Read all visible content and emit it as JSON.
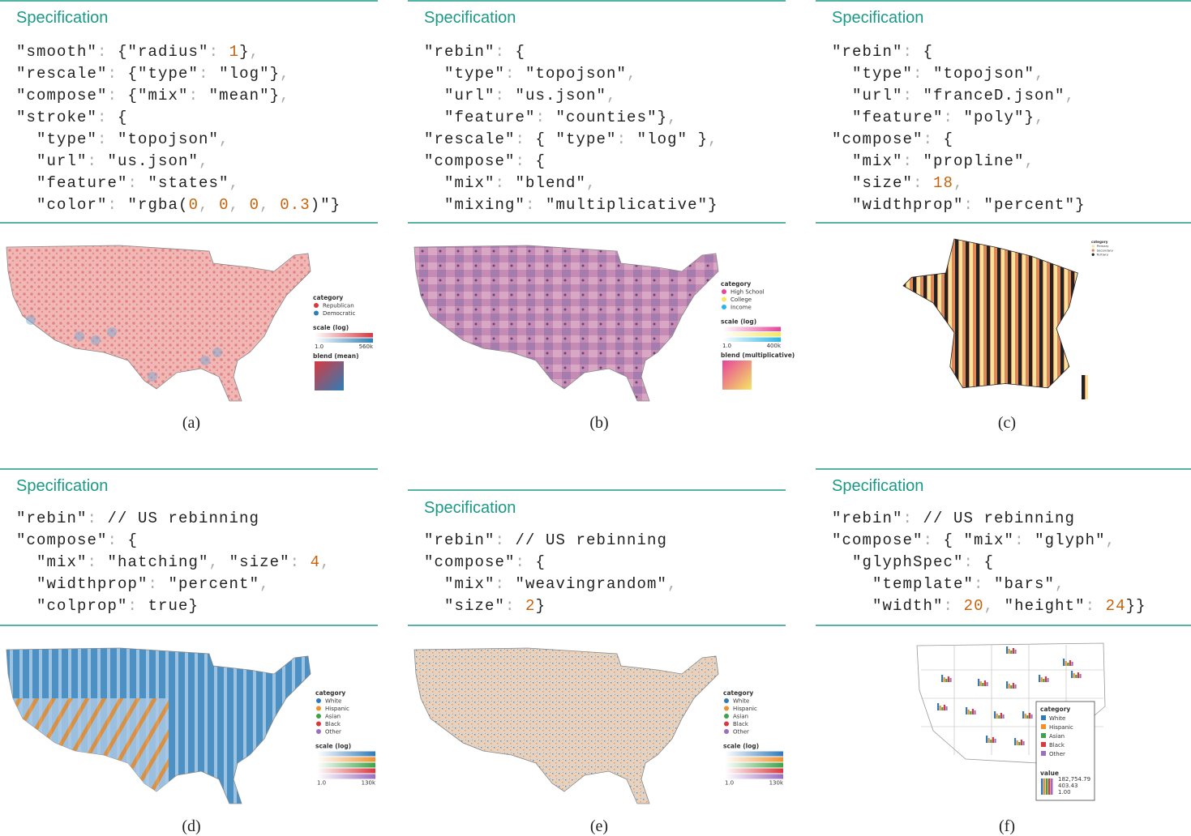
{
  "panels": [
    {
      "heading": "Specification",
      "code": [
        "\"smooth\": {\"radius\": 1},",
        "\"rescale\": {\"type\": \"log\"},",
        "\"compose\": {\"mix\": \"mean\"},",
        "\"stroke\": {",
        "  \"type\": \"topojson\",",
        "  \"url\": \"us.json\",",
        "  \"feature\": \"states\",",
        "  \"color\": \"rgba(0, 0, 0, 0.3)\"}"
      ],
      "legend": {
        "title": "category",
        "items": [
          {
            "label": "Republican",
            "color": "#d8383e"
          },
          {
            "label": "Democratic",
            "color": "#2c7fb8"
          }
        ],
        "scale_title": "scale (log)",
        "scale_min": "1.0",
        "scale_max": "560k",
        "blend_title": "blend (mean)"
      },
      "caption": "(a)"
    },
    {
      "heading": "Specification",
      "code": [
        "\"rebin\": {",
        "  \"type\": \"topojson\",",
        "  \"url\": \"us.json\",",
        "  \"feature\": \"counties\"},",
        "\"rescale\": { \"type\": \"log\" },",
        "\"compose\": {",
        "  \"mix\": \"blend\",",
        "  \"mixing\": \"multiplicative\"}"
      ],
      "legend": {
        "title": "category",
        "items": [
          {
            "label": "High School",
            "color": "#e8449a"
          },
          {
            "label": "College",
            "color": "#f5e663"
          },
          {
            "label": "Income",
            "color": "#2bb5e6"
          }
        ],
        "scale_title": "scale (log)",
        "scale_min": "1.0",
        "scale_max": "400k",
        "blend_title": "blend (multiplicative)"
      },
      "caption": "(b)"
    },
    {
      "heading": "Specification",
      "code": [
        "\"rebin\": {",
        "  \"type\": \"topojson\",",
        "  \"url\": \"franceD.json\",",
        "  \"feature\": \"poly\"},",
        "\"compose\": {",
        "  \"mix\": \"propline\",",
        "  \"size\": 18,",
        "  \"widthprop\": \"percent\"}"
      ],
      "legend": {
        "title": "category",
        "items": [
          {
            "label": "Primary",
            "color": "#f7e39a"
          },
          {
            "label": "Secondary",
            "color": "#e0875a"
          },
          {
            "label": "Tertiary",
            "color": "#222222"
          }
        ]
      },
      "caption": "(c)"
    },
    {
      "heading": "Specification",
      "code": [
        "\"rebin\": // US rebinning",
        "\"compose\": {",
        "  \"mix\": \"hatching\", \"size\": 4,",
        "  \"widthprop\": \"percent\",",
        "  \"colprop\": true}"
      ],
      "legend": {
        "title": "category",
        "items": [
          {
            "label": "White",
            "color": "#2f7ab8"
          },
          {
            "label": "Hispanic",
            "color": "#f0912e"
          },
          {
            "label": "Asian",
            "color": "#3ca34a"
          },
          {
            "label": "Black",
            "color": "#d8383e"
          },
          {
            "label": "Other",
            "color": "#9a6fbf"
          }
        ],
        "scale_title": "scale (log)",
        "scale_min": "1.0",
        "scale_max": "130k"
      },
      "caption": "(d)"
    },
    {
      "heading": "Specification",
      "code": [
        "\"rebin\": // US rebinning",
        "\"compose\": {",
        "  \"mix\": \"weavingrandom\",",
        "  \"size\": 2}"
      ],
      "legend": {
        "title": "category",
        "items": [
          {
            "label": "White",
            "color": "#2f7ab8"
          },
          {
            "label": "Hispanic",
            "color": "#f0912e"
          },
          {
            "label": "Asian",
            "color": "#3ca34a"
          },
          {
            "label": "Black",
            "color": "#d8383e"
          },
          {
            "label": "Other",
            "color": "#9a6fbf"
          }
        ],
        "scale_title": "scale (log)",
        "scale_min": "1.0",
        "scale_max": "130k"
      },
      "caption": "(e)"
    },
    {
      "heading": "Specification",
      "code": [
        "\"rebin\": // US rebinning",
        "\"compose\": { \"mix\": \"glyph\",",
        "  \"glyphSpec\": {",
        "    \"template\": \"bars\",",
        "    \"width\": 20, \"height\": 24}}"
      ],
      "legend": {
        "title": "category",
        "items": [
          {
            "label": "White",
            "color": "#2f7ab8"
          },
          {
            "label": "Hispanic",
            "color": "#f0912e"
          },
          {
            "label": "Asian",
            "color": "#3ca34a"
          },
          {
            "label": "Black",
            "color": "#d8383e"
          },
          {
            "label": "Other",
            "color": "#9a6fbf"
          }
        ],
        "value_title": "value",
        "value_labels": [
          "182,754.79",
          "403.43",
          "1.00"
        ]
      },
      "caption": "(f)"
    }
  ]
}
